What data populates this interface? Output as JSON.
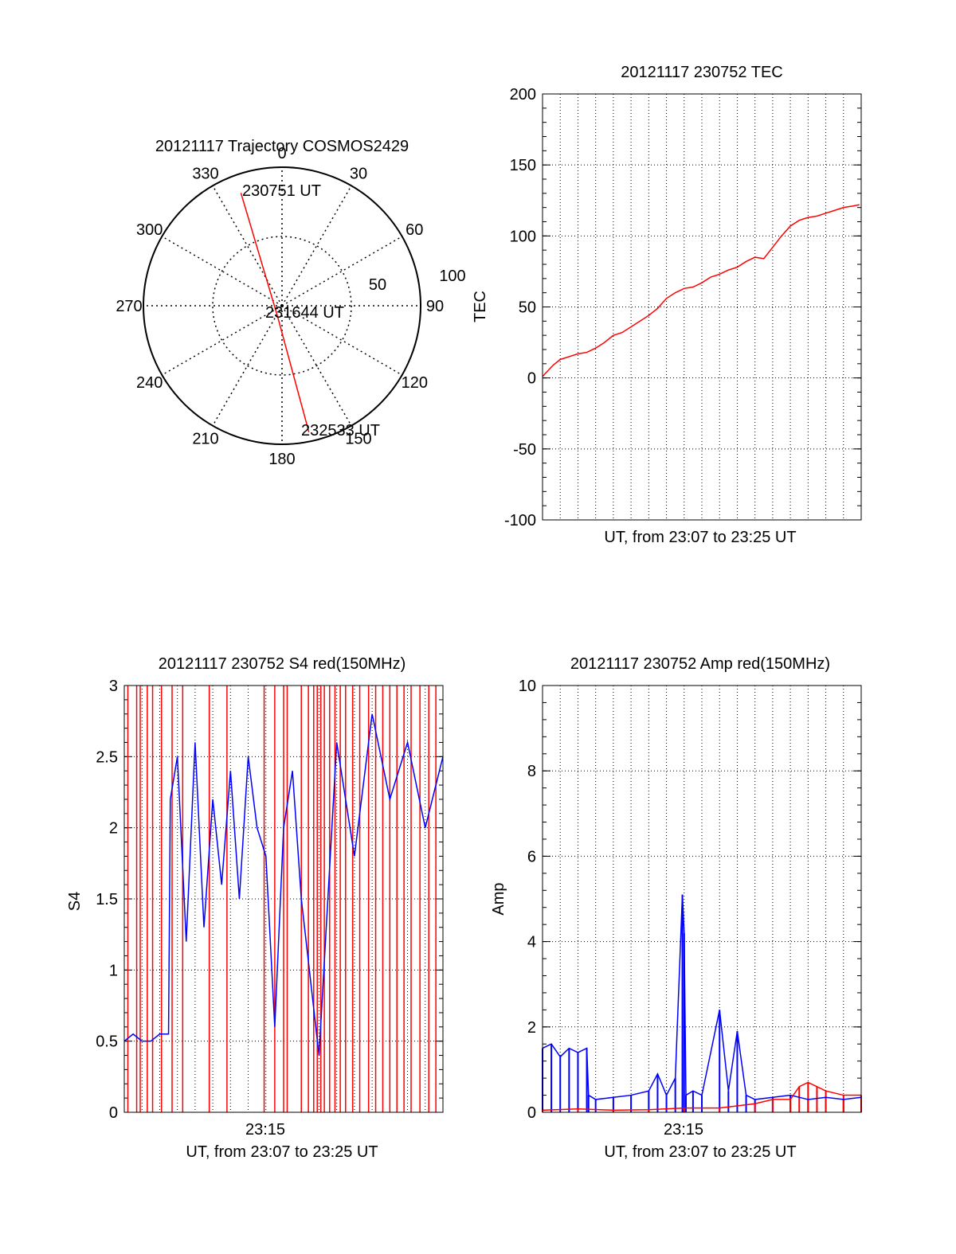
{
  "colors": {
    "red": "#ff0000",
    "blue": "#0000ff",
    "black": "#000000",
    "grid": "#000000"
  },
  "chart_data": [
    {
      "type": "polar",
      "title": "20121117 Trajectory COSMOS2429",
      "angle_labels": [
        "0",
        "30",
        "60",
        "90",
        "120",
        "150",
        "180",
        "210",
        "240",
        "270",
        "300",
        "330"
      ],
      "radial_labels": [
        "50",
        "100"
      ],
      "trajectory": [
        {
          "azimuth": 340,
          "elevation": 12,
          "label": "230751 UT"
        },
        {
          "azimuth": 200,
          "elevation": 82,
          "label": "231644 UT"
        },
        {
          "azimuth": 168,
          "elevation": 6,
          "label": "232533 UT"
        }
      ]
    },
    {
      "type": "line",
      "title": "20121117 230752 TEC",
      "xlabel": "UT, from 23:07 to 23:25 UT",
      "ylabel": "TEC",
      "ylim": [
        -100,
        200
      ],
      "yticks": [
        "-100",
        "-50",
        "0",
        "50",
        "100",
        "150",
        "200"
      ],
      "xlim_minutes": [
        0,
        18
      ],
      "series": [
        {
          "color": "red",
          "x": [
            0.0,
            0.3,
            0.6,
            1.0,
            1.5,
            2.0,
            2.5,
            3.0,
            3.5,
            4.0,
            4.5,
            5.0,
            5.5,
            6.0,
            6.5,
            7.0,
            7.5,
            8.0,
            8.5,
            9.0,
            9.5,
            10.0,
            10.5,
            11.0,
            11.5,
            12.0,
            12.5,
            13.0,
            13.5,
            14.0,
            14.5,
            15.0,
            15.5,
            16.0,
            16.5,
            17.0,
            17.5,
            17.9
          ],
          "y": [
            1,
            5,
            9,
            13,
            15,
            17,
            18,
            21,
            25,
            30,
            32,
            36,
            40,
            44,
            49,
            56,
            60,
            63,
            64,
            67,
            71,
            73,
            76,
            78,
            82,
            85,
            84,
            92,
            100,
            107,
            111,
            113,
            114,
            116,
            118,
            120,
            121,
            122
          ]
        }
      ]
    },
    {
      "type": "line",
      "title": "20121117 230752 S4 red(150MHz)",
      "xlabel": "UT, from 23:07 to 23:25 UT",
      "ylabel": "S4",
      "ylim": [
        0,
        3
      ],
      "yticks": [
        "0",
        "0.5",
        "1",
        "1.5",
        "2",
        "2.5",
        "3"
      ],
      "xticks": [
        "23:15"
      ],
      "xlim_minutes": [
        0,
        18
      ],
      "series": [
        {
          "color": "blue",
          "x": [
            0.0,
            0.5,
            1.0,
            1.5,
            2.0,
            2.5,
            2.6,
            3.0,
            3.5,
            4.0,
            4.5,
            5.0,
            5.5,
            6.0,
            6.5,
            7.0,
            7.5,
            8.0,
            8.5,
            9.0,
            9.5,
            10.0,
            11.0,
            12.0,
            13.0,
            14.0,
            15.0,
            16.0,
            17.0,
            18.0
          ],
          "y": [
            0.5,
            0.55,
            0.5,
            0.5,
            0.55,
            0.55,
            2.2,
            2.5,
            1.2,
            2.6,
            1.3,
            2.2,
            1.6,
            2.4,
            1.5,
            2.5,
            2.0,
            1.8,
            0.6,
            2.0,
            2.4,
            1.5,
            0.4,
            2.6,
            1.8,
            2.8,
            2.2,
            2.6,
            2.0,
            2.5
          ]
        }
      ],
      "red_spike_minutes": [
        0.2,
        0.7,
        0.9,
        1.3,
        1.6,
        2.1,
        2.7,
        3.3,
        4.8,
        5.8,
        7.9,
        8.5,
        9.0,
        9.2,
        10.0,
        10.4,
        10.7,
        10.9,
        11.1,
        11.3,
        11.6,
        11.9,
        12.2,
        12.5,
        12.9,
        13.3,
        13.8,
        14.2,
        14.6,
        15.0,
        15.4,
        15.8,
        16.2,
        16.7,
        17.2,
        17.6
      ]
    },
    {
      "type": "line",
      "title": "20121117 230752 Amp red(150MHz)",
      "xlabel": "UT, from 23:07 to 23:25 UT",
      "ylabel": "Amp",
      "ylim": [
        0,
        10
      ],
      "yticks": [
        "0",
        "2",
        "4",
        "6",
        "8",
        "10"
      ],
      "xticks": [
        "23:15"
      ],
      "xlim_minutes": [
        0,
        18
      ],
      "series": [
        {
          "color": "blue",
          "x": [
            0.0,
            0.5,
            1.0,
            1.5,
            2.0,
            2.5,
            2.6,
            3.0,
            4.0,
            5.0,
            6.0,
            6.5,
            7.0,
            7.5,
            7.9,
            8.0,
            8.1,
            8.5,
            9.0,
            10.0,
            10.5,
            11.0,
            11.5,
            12.0,
            13.0,
            14.0,
            15.0,
            16.0,
            17.0,
            18.0
          ],
          "y": [
            1.5,
            1.6,
            1.3,
            1.5,
            1.4,
            1.5,
            0.4,
            0.3,
            0.35,
            0.4,
            0.5,
            0.9,
            0.4,
            0.8,
            5.1,
            4.2,
            0.4,
            0.5,
            0.4,
            2.4,
            0.5,
            1.9,
            0.4,
            0.3,
            0.35,
            0.4,
            0.3,
            0.35,
            0.3,
            0.35
          ]
        },
        {
          "color": "red",
          "x": [
            0.0,
            2.0,
            4.0,
            6.0,
            8.0,
            10.0,
            12.0,
            13.0,
            14.0,
            14.5,
            15.0,
            15.5,
            16.0,
            17.0,
            18.0
          ],
          "y": [
            0.05,
            0.08,
            0.05,
            0.06,
            0.1,
            0.1,
            0.2,
            0.3,
            0.3,
            0.6,
            0.7,
            0.6,
            0.5,
            0.4,
            0.4
          ]
        }
      ]
    }
  ]
}
